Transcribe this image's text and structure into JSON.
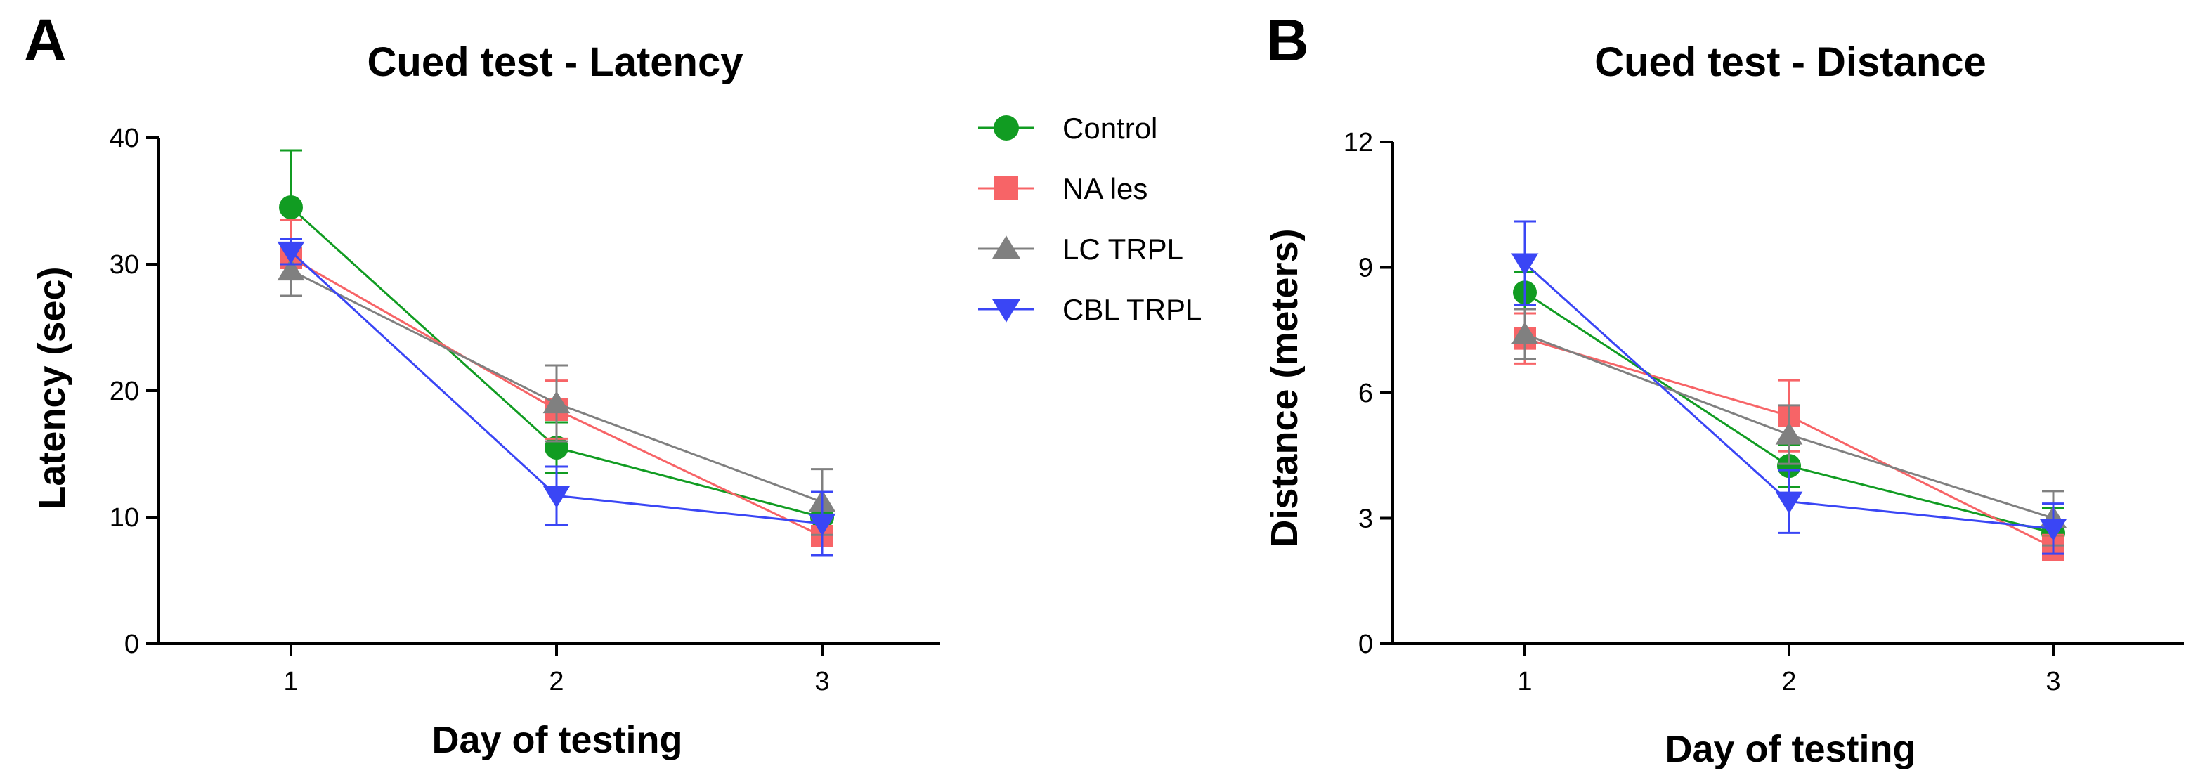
{
  "colors": {
    "Control": "#119c22",
    "NA les": "#f76467",
    "LC TRPL": "#808080",
    "CBL TRPL": "#3a46f5"
  },
  "legend": {
    "items": [
      {
        "name": "Control",
        "marker": "circle"
      },
      {
        "name": "NA les",
        "marker": "square"
      },
      {
        "name": "LC TRPL",
        "marker": "triangle-up"
      },
      {
        "name": "CBL TRPL",
        "marker": "triangle-down"
      }
    ]
  },
  "chart_data": [
    {
      "panel": "A",
      "type": "line",
      "title": "Cued test - Latency",
      "xlabel": "Day of testing",
      "ylabel": "Latency (sec)",
      "x": [
        1,
        2,
        3
      ],
      "xticks": [
        "1",
        "2",
        "3"
      ],
      "ylim": [
        0,
        40
      ],
      "yticks": [
        "0",
        "10",
        "20",
        "30",
        "40"
      ],
      "series": [
        {
          "name": "Control",
          "values": [
            34.5,
            15.5,
            10.0
          ],
          "err": [
            4.5,
            2.0,
            2.0
          ]
        },
        {
          "name": "NA les",
          "values": [
            30.5,
            18.5,
            8.5
          ],
          "err": [
            3.0,
            2.3,
            1.5
          ]
        },
        {
          "name": "LC TRPL",
          "values": [
            29.5,
            19.0,
            11.2
          ],
          "err": [
            2.0,
            3.0,
            2.6
          ]
        },
        {
          "name": "CBL TRPL",
          "values": [
            31.0,
            11.7,
            9.5
          ],
          "err": [
            1.0,
            2.3,
            2.5
          ]
        }
      ]
    },
    {
      "panel": "B",
      "type": "line",
      "title": "Cued test - Distance",
      "xlabel": "Day of testing",
      "ylabel": "Distance (meters)",
      "x": [
        1,
        2,
        3
      ],
      "xticks": [
        "1",
        "2",
        "3"
      ],
      "ylim": [
        0,
        12
      ],
      "yticks": [
        "0",
        "3",
        "6",
        "9",
        "12"
      ],
      "series": [
        {
          "name": "Control",
          "values": [
            8.4,
            4.25,
            2.65
          ],
          "err": [
            0.5,
            0.5,
            0.6
          ]
        },
        {
          "name": "NA les",
          "values": [
            7.3,
            5.45,
            2.3
          ],
          "err": [
            0.6,
            0.85,
            0.3
          ]
        },
        {
          "name": "LC TRPL",
          "values": [
            7.4,
            5.0,
            3.0
          ],
          "err": [
            0.6,
            0.7,
            0.65
          ]
        },
        {
          "name": "CBL TRPL",
          "values": [
            9.1,
            3.4,
            2.75
          ],
          "err": [
            1.0,
            0.75,
            0.6
          ]
        }
      ]
    }
  ]
}
